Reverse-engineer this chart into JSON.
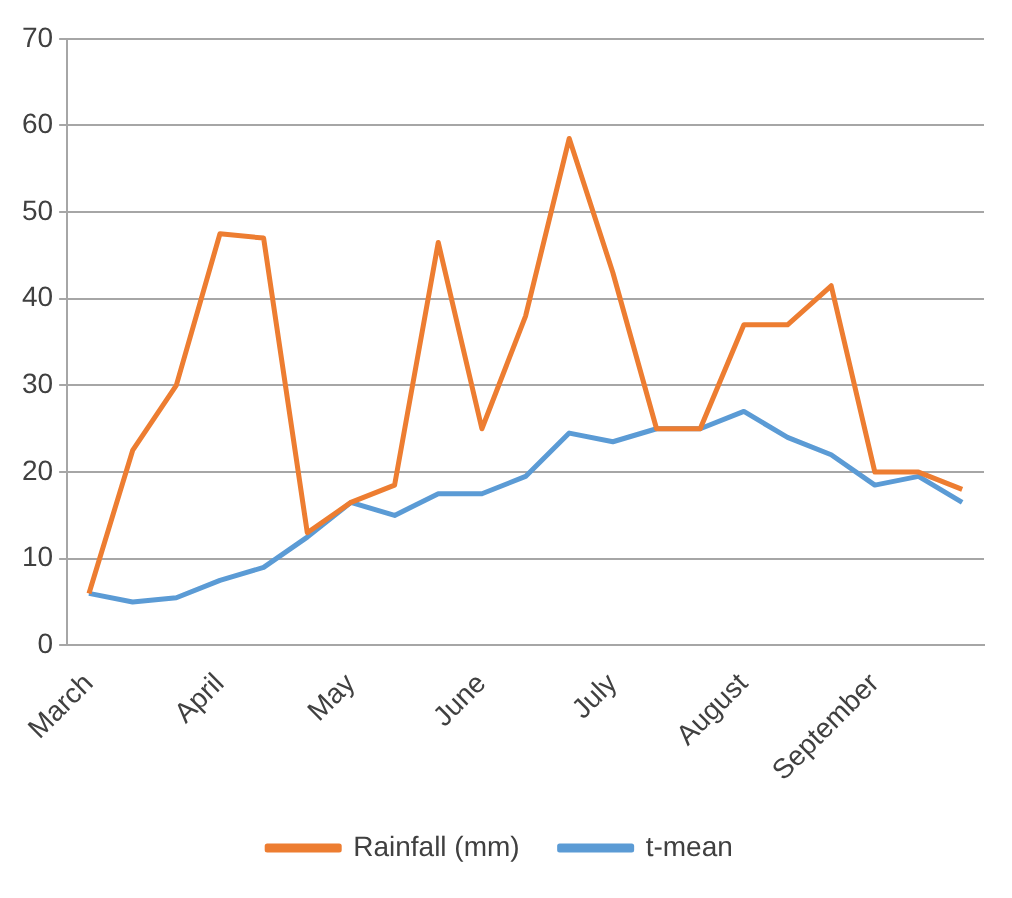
{
  "chart_data": {
    "type": "line",
    "categories": [
      "March",
      null,
      null,
      "April",
      null,
      null,
      "May",
      null,
      null,
      "June",
      null,
      null,
      "July",
      null,
      null,
      "August",
      null,
      null,
      "September",
      null,
      null
    ],
    "series": [
      {
        "name": "Rainfall (mm)",
        "color": "#ed7d31",
        "values": [
          6,
          22.5,
          30,
          47.5,
          47,
          13,
          16.5,
          18.5,
          46.5,
          25,
          38,
          58.5,
          43,
          25,
          25,
          37,
          37,
          41.5,
          20,
          20,
          18
        ]
      },
      {
        "name": "t-mean",
        "color": "#5b9bd5",
        "values": [
          6,
          5,
          5.5,
          7.5,
          9,
          12.5,
          16.5,
          15,
          17.5,
          17.5,
          19.5,
          24.5,
          23.5,
          25,
          25,
          27,
          24,
          22,
          18.5,
          19.5,
          16.5
        ]
      }
    ],
    "ylim": [
      0,
      70
    ],
    "yticks": [
      0,
      10,
      20,
      30,
      40,
      50,
      60,
      70
    ],
    "grid": "y",
    "legend": "bottom",
    "marker": "none",
    "line_style": "solid"
  }
}
